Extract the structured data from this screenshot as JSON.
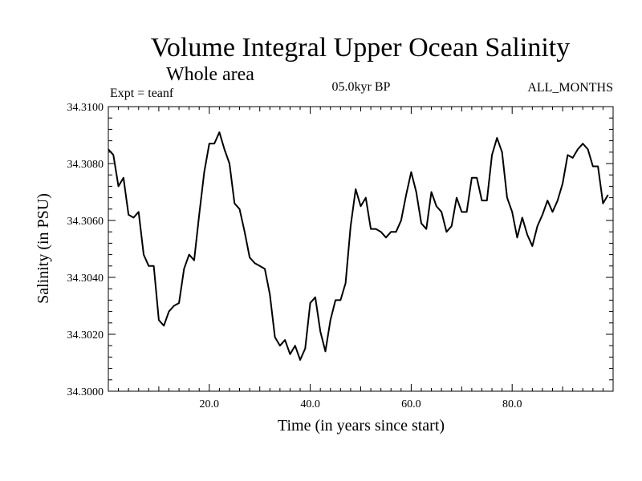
{
  "chart_data": {
    "type": "line",
    "title": "Volume Integral Upper Ocean Salinity",
    "subtitle": "Whole area",
    "left_header": "Expt = teanf",
    "center_header": "05.0kyr BP",
    "right_header": "ALL_MONTHS",
    "xlabel": "Time (in years since start)",
    "ylabel": "Salinity (in PSU)",
    "xlim": [
      0,
      100
    ],
    "ylim": [
      34.3,
      34.31
    ],
    "x_ticks": [
      20,
      40,
      60,
      80
    ],
    "x_tick_labels": [
      "20.0",
      "40.0",
      "60.0",
      "80.0"
    ],
    "y_ticks": [
      34.3,
      34.302,
      34.304,
      34.306,
      34.308,
      34.31
    ],
    "y_tick_labels": [
      "34.3000",
      "34.3020",
      "34.3040",
      "34.3060",
      "34.3080",
      "34.3100"
    ],
    "grid": false,
    "series": [
      {
        "name": "salinity",
        "color": "#000000",
        "x": [
          0,
          1,
          2,
          3,
          4,
          5,
          6,
          7,
          8,
          9,
          10,
          11,
          12,
          13,
          14,
          15,
          16,
          17,
          18,
          19,
          20,
          21,
          22,
          23,
          24,
          25,
          26,
          27,
          28,
          29,
          30,
          31,
          32,
          33,
          34,
          35,
          36,
          37,
          38,
          39,
          40,
          41,
          42,
          43,
          44,
          45,
          46,
          47,
          48,
          49,
          50,
          51,
          52,
          53,
          54,
          55,
          56,
          57,
          58,
          59,
          60,
          61,
          62,
          63,
          64,
          65,
          66,
          67,
          68,
          69,
          70,
          71,
          72,
          73,
          74,
          75,
          76,
          77,
          78,
          79,
          80,
          81,
          82,
          83,
          84,
          85,
          86,
          87,
          88,
          89,
          90,
          91,
          92,
          93,
          94,
          95,
          96,
          97,
          98,
          99
        ],
        "y": [
          34.3085,
          34.3083,
          34.3072,
          34.3075,
          34.3062,
          34.3061,
          34.3063,
          34.3048,
          34.3044,
          34.3044,
          34.3025,
          34.3023,
          34.3028,
          34.303,
          34.3031,
          34.3043,
          34.3048,
          34.3046,
          34.3062,
          34.3077,
          34.3087,
          34.3087,
          34.3091,
          34.3085,
          34.308,
          34.3066,
          34.3064,
          34.3056,
          34.3047,
          34.3045,
          34.3044,
          34.3043,
          34.3034,
          34.3019,
          34.3016,
          34.3018,
          34.3013,
          34.3016,
          34.3011,
          34.3015,
          34.3031,
          34.3033,
          34.3021,
          34.3014,
          34.3025,
          34.3032,
          34.3032,
          34.3038,
          34.3058,
          34.3071,
          34.3065,
          34.3068,
          34.3057,
          34.3057,
          34.3056,
          34.3054,
          34.3056,
          34.3056,
          34.306,
          34.3069,
          34.3077,
          34.307,
          34.3059,
          34.3057,
          34.307,
          34.3065,
          34.3063,
          34.3056,
          34.3058,
          34.3068,
          34.3063,
          34.3063,
          34.3075,
          34.3075,
          34.3067,
          34.3067,
          34.3083,
          34.3089,
          34.3084,
          34.3068,
          34.3063,
          34.3054,
          34.3061,
          34.3055,
          34.3051,
          34.3058,
          34.3062,
          34.3067,
          34.3063,
          34.3067,
          34.3073,
          34.3083,
          34.3082,
          34.3085,
          34.3087,
          34.3085,
          34.3079,
          34.3079,
          34.3066,
          34.3069
        ]
      }
    ]
  }
}
